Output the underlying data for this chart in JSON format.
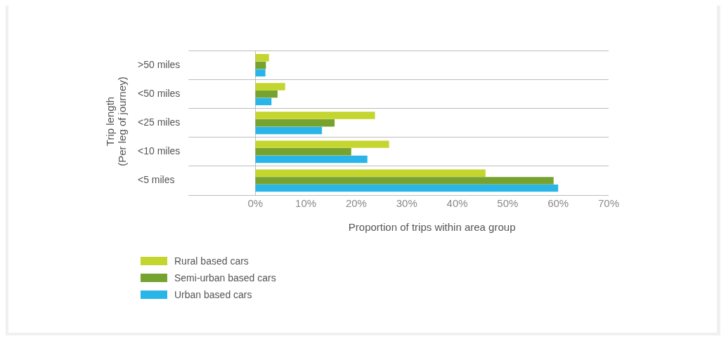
{
  "chart_data": {
    "type": "bar",
    "orientation": "horizontal",
    "xlabel": "Proportion of trips within area group",
    "ylabel": "Trip length\n(Per leg of journey)",
    "categories": [
      ">50 miles",
      "<50 miles",
      "<25 miles",
      "<10 miles",
      "<5 miles"
    ],
    "series": [
      {
        "name": "Rural based cars",
        "color": "#c3d52e",
        "values": [
          2.7,
          5.9,
          23.7,
          26.5,
          45.6
        ]
      },
      {
        "name": "Semi-urban based cars",
        "color": "#76a22f",
        "values": [
          2.1,
          4.4,
          15.7,
          19.0,
          59.1
        ]
      },
      {
        "name": "Urban based cars",
        "color": "#29b5e8",
        "values": [
          2.0,
          3.2,
          13.2,
          22.2,
          60.0
        ]
      }
    ],
    "xlim": [
      0,
      70
    ],
    "xticks": [
      {
        "value": 0,
        "label": "0%"
      },
      {
        "value": 10,
        "label": "10%"
      },
      {
        "value": 20,
        "label": "20%"
      },
      {
        "value": 30,
        "label": "30%"
      },
      {
        "value": 40,
        "label": "40%"
      },
      {
        "value": 50,
        "label": "50%"
      },
      {
        "value": 60,
        "label": "60%"
      },
      {
        "value": 70,
        "label": "70%"
      }
    ],
    "grid": "y",
    "legend": "bottom left"
  }
}
